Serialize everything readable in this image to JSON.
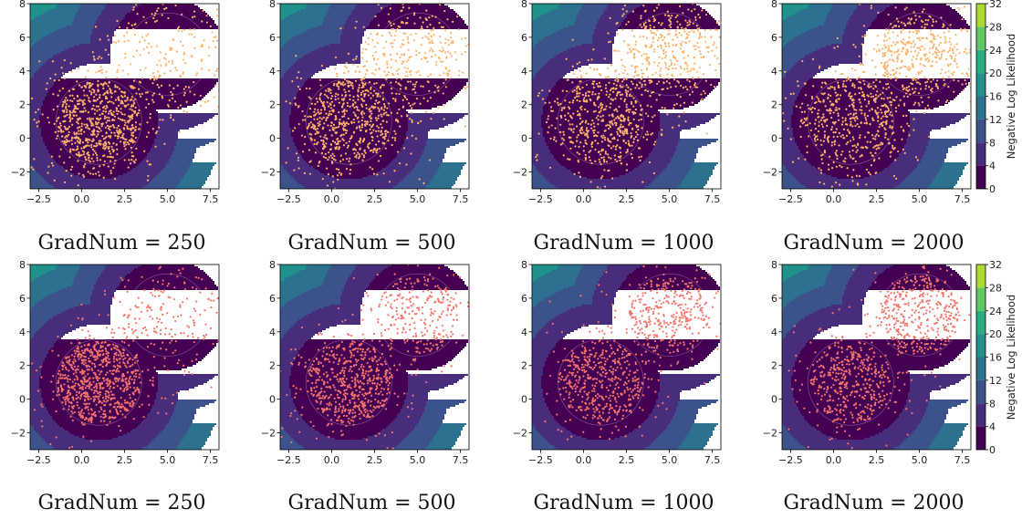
{
  "chart_data": {
    "type": "contour-scatter-grid",
    "rows": 2,
    "cols": 4,
    "xlim": [
      -3,
      8
    ],
    "ylim": [
      -3,
      8
    ],
    "xticks": [
      -2.5,
      0.0,
      2.5,
      5.0,
      7.5
    ],
    "xtick_labels": [
      "−2.5",
      "0.0",
      "2.5",
      "5.0",
      "7.5"
    ],
    "yticks": [
      -2,
      0,
      2,
      4,
      6,
      8
    ],
    "ytick_labels": [
      "−2",
      "0",
      "2",
      "4",
      "6",
      "8"
    ],
    "modes": [
      {
        "center": [
          1,
          1
        ],
        "radius": 2.5
      },
      {
        "center": [
          5,
          5
        ],
        "radius": 2.4
      }
    ],
    "contour_levels": [
      0,
      4,
      8,
      12,
      16,
      20,
      24,
      28,
      32
    ],
    "colormap": [
      "#440154",
      "#472d7b",
      "#3b528b",
      "#2c728e",
      "#21918c",
      "#28ae80",
      "#5ec962",
      "#addc30",
      "#fde725"
    ],
    "colorbar": {
      "label": "Negative Log Likelihood",
      "ticks": [
        0,
        4,
        8,
        12,
        16,
        20,
        24,
        28,
        32
      ],
      "tick_labels": [
        "0",
        "4",
        "8",
        "12",
        "16",
        "20",
        "24",
        "28",
        "32"
      ]
    },
    "panels": [
      {
        "caption": "GradNum = 250",
        "row": 0,
        "point_color": "#fdb46a",
        "points_in_mode1": 600,
        "points_in_mode2": 100,
        "points_outside": 300
      },
      {
        "caption": "GradNum = 500",
        "row": 0,
        "point_color": "#fdb46a",
        "points_in_mode1": 500,
        "points_in_mode2": 200,
        "points_outside": 300
      },
      {
        "caption": "GradNum = 1000",
        "row": 0,
        "point_color": "#fdb46a",
        "points_in_mode1": 420,
        "points_in_mode2": 280,
        "points_outside": 300
      },
      {
        "caption": "GradNum = 2000",
        "row": 0,
        "point_color": "#fdb46a",
        "points_in_mode1": 380,
        "points_in_mode2": 330,
        "points_outside": 290
      },
      {
        "caption": "GradNum = 250",
        "row": 1,
        "point_color": "#f4756b",
        "points_in_mode1": 700,
        "points_in_mode2": 120,
        "points_outside": 180
      },
      {
        "caption": "GradNum = 500",
        "row": 1,
        "point_color": "#f4756b",
        "points_in_mode1": 520,
        "points_in_mode2": 240,
        "points_outside": 160
      },
      {
        "caption": "GradNum = 1000",
        "row": 1,
        "point_color": "#f4756b",
        "points_in_mode1": 420,
        "points_in_mode2": 320,
        "points_outside": 140
      },
      {
        "caption": "GradNum = 2000",
        "row": 1,
        "point_color": "#f4756b",
        "points_in_mode1": 400,
        "points_in_mode2": 380,
        "points_outside": 130
      }
    ]
  }
}
